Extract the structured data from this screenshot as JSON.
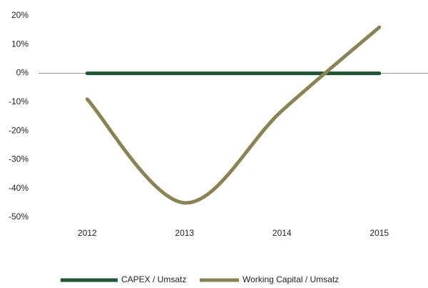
{
  "chart_data": {
    "type": "line",
    "categories": [
      "2012",
      "2013",
      "2014",
      "2015"
    ],
    "series": [
      {
        "name": "CAPEX / Umsatz",
        "color": "#1e5631",
        "values": [
          0,
          0,
          0,
          0
        ]
      },
      {
        "name": "Working Capital / Umsatz",
        "color": "#8c8352",
        "values": [
          -9,
          -45,
          -13,
          16
        ]
      }
    ],
    "ylim": [
      -50,
      20
    ],
    "yticks": [
      {
        "value": -50,
        "label": "-50%"
      },
      {
        "value": -40,
        "label": "-40%"
      },
      {
        "value": -30,
        "label": "-30%"
      },
      {
        "value": -20,
        "label": "-20%"
      },
      {
        "value": -10,
        "label": "-10%"
      },
      {
        "value": 0,
        "label": "0%"
      },
      {
        "value": 10,
        "label": "10%"
      },
      {
        "value": 20,
        "label": "20%"
      }
    ],
    "legend": "bottom"
  }
}
